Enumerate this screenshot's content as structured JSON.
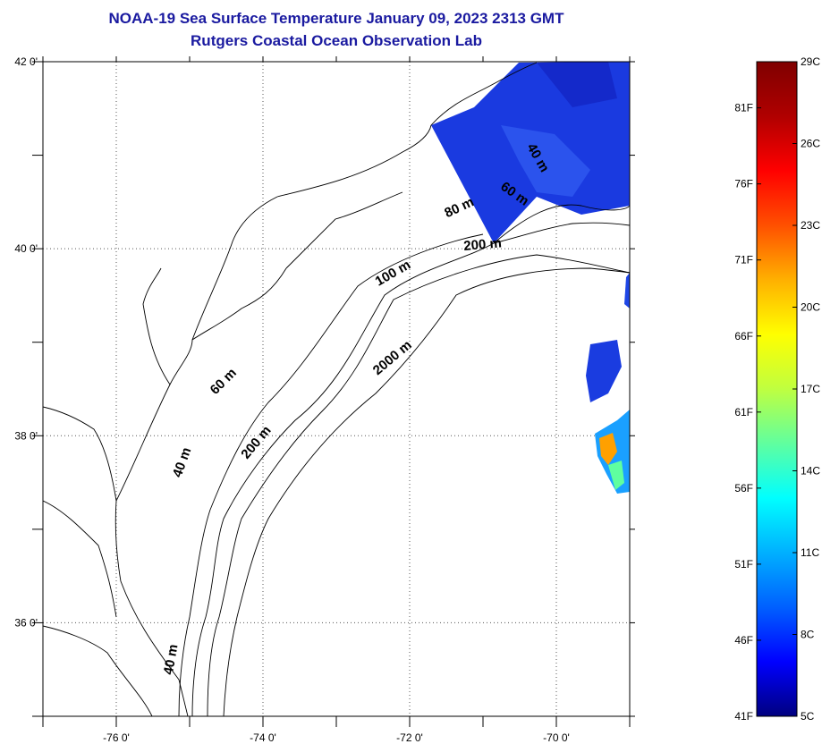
{
  "title": {
    "line1": "NOAA-19 Sea Surface Temperature January 09, 2023 2313 GMT",
    "line2": "Rutgers Coastal Ocean Observation Lab"
  },
  "map": {
    "lon_range": [
      -77,
      -69
    ],
    "lat_range": [
      35,
      42
    ],
    "lon_ticks": [
      {
        "value": -76,
        "label": "-76 0'"
      },
      {
        "value": -74,
        "label": "-74 0'"
      },
      {
        "value": -72,
        "label": "-72 0'"
      },
      {
        "value": -70,
        "label": "-70 0'"
      }
    ],
    "lat_ticks": [
      {
        "value": 42,
        "label": "42 0'"
      },
      {
        "value": 40,
        "label": "40 0'"
      },
      {
        "value": 38,
        "label": "38 0'"
      },
      {
        "value": 36,
        "label": "36 0'"
      }
    ],
    "gridlines": true,
    "contour_labels": [
      {
        "text": "40 m",
        "lon": -70.3,
        "lat": 40.95,
        "rotate": 60
      },
      {
        "text": "60 m",
        "lon": -70.6,
        "lat": 40.55,
        "rotate": 35
      },
      {
        "text": "80 m",
        "lon": -71.3,
        "lat": 40.4,
        "rotate": -25
      },
      {
        "text": "200 m",
        "lon": -71.0,
        "lat": 40.0,
        "rotate": -5
      },
      {
        "text": "100 m",
        "lon": -72.2,
        "lat": 39.7,
        "rotate": -30
      },
      {
        "text": "2000 m",
        "lon": -72.2,
        "lat": 38.8,
        "rotate": -40
      },
      {
        "text": "60 m",
        "lon": -74.5,
        "lat": 38.55,
        "rotate": -45
      },
      {
        "text": "200 m",
        "lon": -74.05,
        "lat": 37.9,
        "rotate": -50
      },
      {
        "text": "40 m",
        "lon": -75.05,
        "lat": 37.7,
        "rotate": -70
      },
      {
        "text": "40 m",
        "lon": -75.2,
        "lat": 35.6,
        "rotate": -80
      }
    ]
  },
  "colorbar": {
    "colors": [
      "#00007f",
      "#0000ff",
      "#0060ff",
      "#00b0ff",
      "#00ffff",
      "#60ff9f",
      "#bfff40",
      "#ffff00",
      "#ffb000",
      "#ff5000",
      "#ff0000",
      "#b00000",
      "#7f0000"
    ],
    "celsius_labels": [
      "5C",
      "8C",
      "11C",
      "14C",
      "17C",
      "20C",
      "23C",
      "26C",
      "29C"
    ],
    "fahrenheit_labels": [
      "41F",
      "46F",
      "51F",
      "56F",
      "61F",
      "66F",
      "71F",
      "76F",
      "81F"
    ]
  }
}
